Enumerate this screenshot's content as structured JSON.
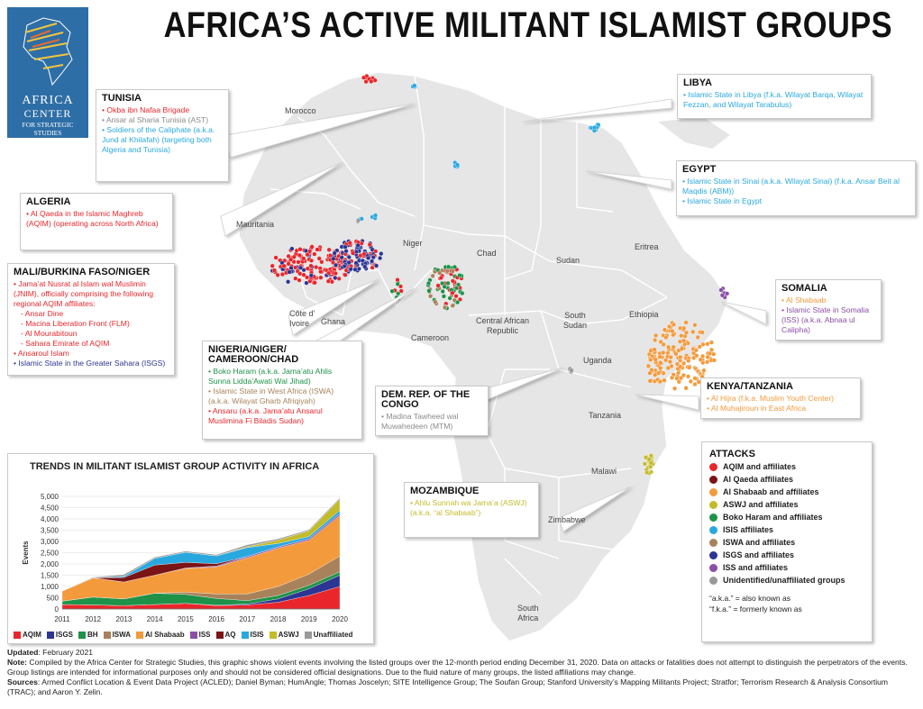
{
  "title": "AFRICA’S ACTIVE MILITANT ISLAMIST GROUPS",
  "logo": {
    "line1": "AFRICA",
    "line2": "CENTER",
    "line3a": "FOR STRATEGIC",
    "line3b": "STUDIES"
  },
  "country_labels": {
    "morocco": "Morocco",
    "mauritania": "Mauritania",
    "niger": "Niger",
    "chad": "Chad",
    "sudan": "Sudan",
    "eritrea": "Eritrea",
    "cote": "Côte d’",
    "ivoire": "Ivoire",
    "ghana": "Ghana",
    "cameroon": "Cameroon",
    "car1": "Central African",
    "car2": "Republic",
    "ss1": "South",
    "ss2": "Sudan",
    "ethiopia": "Ethiopia",
    "uganda": "Uganda",
    "tanzania": "Tanzania",
    "malawi": "Malawi",
    "zimbabwe": "Zimbabwe",
    "sa1": "South",
    "sa2": "Africa"
  },
  "boxes": {
    "tunisia": {
      "title": "TUNISIA",
      "items": [
        {
          "text": "• Okba ibn Nafaa Brigade",
          "color": "#e8262b"
        },
        {
          "text": "• Ansar al Sharia Tunisia (AST)",
          "color": "#8a8a8a"
        },
        {
          "text": "• Soldiers of the Caliphate (a.k.a. Jund al Khilafah) (targeting both Algeria and Tunisia)",
          "color": "#29a8df"
        }
      ]
    },
    "algeria": {
      "title": "ALGERIA",
      "items": [
        {
          "text": "• Al Qaeda in the Islamic Maghreb (AQIM) (operating across North Africa)",
          "color": "#e8262b"
        }
      ]
    },
    "mali": {
      "title": "MALI/BURKINA FASO/NIGER",
      "items": [
        {
          "text": "• Jama’at Nusrat al Islam wal Muslimin (JNIM), officially comprising the following regional AQIM affiliates:",
          "color": "#e8262b"
        },
        {
          "text": "- Ansar Dine",
          "color": "#e8262b",
          "indent": true
        },
        {
          "text": "- Macina Liberation Front (FLM)",
          "color": "#e8262b",
          "indent": true
        },
        {
          "text": "- Al Mourabitoun",
          "color": "#e8262b",
          "indent": true
        },
        {
          "text": "- Sahara Emirate of AQIM",
          "color": "#e8262b",
          "indent": true
        },
        {
          "text": "• Ansaroul Islam",
          "color": "#e8262b"
        },
        {
          "text": "• Islamic State in the Greater Sahara (ISGS)",
          "color": "#2c3592"
        }
      ]
    },
    "nigeria": {
      "title": "NIGERIA/NIGER/ CAMEROON/CHAD",
      "items": [
        {
          "text": "• Boko Haram (a.k.a. Jama’atu Ahlis Sunna Lidda’Awati Wal Jihad)",
          "color": "#1e9249"
        },
        {
          "text": "• Islamic State in West Africa (ISWA) (a.k.a. Wilayat Gharb Afriqiyah)",
          "color": "#a8825b"
        },
        {
          "text": "• Ansaru (a.k.a. Jama’atu Ansarul Muslimina Fi Biladis Sudan)",
          "color": "#e8262b"
        }
      ]
    },
    "drc": {
      "title": "DEM. REP. OF THE CONGO",
      "items": [
        {
          "text": "• Madina Tawheed wal Muwahedeen (MTM)",
          "color": "#8a8a8a"
        }
      ]
    },
    "mozambique": {
      "title": "MOZAMBIQUE",
      "items": [
        {
          "text": "• Ahlu Sunnah wa Jama’a (ASWJ) (a.k.a. “al Shabaab”)",
          "color": "#c4bb2a"
        }
      ]
    },
    "libya": {
      "title": "LIBYA",
      "items": [
        {
          "text": "• Islamic State in Libya (f.k.a. Wilayat Barqa, Wilayat Fezzan, and Wilayat Tarabulus)",
          "color": "#29a8df"
        }
      ]
    },
    "egypt": {
      "title": "EGYPT",
      "items": [
        {
          "text": "• Islamic State in Sinai (a.k.a. Wilayat Sinai) (f.k.a. Ansar Beit al Maqdis (ABM))",
          "color": "#29a8df"
        },
        {
          "text": "• Islamic State in Egypt",
          "color": "#29a8df"
        }
      ]
    },
    "somalia": {
      "title": "SOMALIA",
      "items": [
        {
          "text": "• Al Shabaab",
          "color": "#f39a3c"
        },
        {
          "text": "• Islamic State in Somalia (ISS) (a.k.a. Abnaa ul Calipha)",
          "color": "#8b4fa6"
        }
      ]
    },
    "kenya": {
      "title": "KENYA/TANZANIA",
      "items": [
        {
          "text": "• Al Hijra (f.k.a. Muslim Youth Center)",
          "color": "#f39a3c"
        },
        {
          "text": "• Al Muhajiroun in East Africa",
          "color": "#f39a3c"
        }
      ]
    }
  },
  "legend": {
    "title": "ATTACKS",
    "items": [
      {
        "label": "AQIM and affiliates",
        "color": "#e8262b"
      },
      {
        "label": "Al Qaeda affiliates",
        "color": "#7a1416"
      },
      {
        "label": "Al Shabaab and affiliates",
        "color": "#f39a3c"
      },
      {
        "label": "ASWJ and affiliates",
        "color": "#c4bb2a"
      },
      {
        "label": "Boko Haram and affiliates",
        "color": "#1e9249"
      },
      {
        "label": "ISIS affiliates",
        "color": "#29a8df"
      },
      {
        "label": "ISWA and affiliates",
        "color": "#a8825b"
      },
      {
        "label": "ISGS and affiliates",
        "color": "#2c3592"
      },
      {
        "label": "ISS and affiliates",
        "color": "#8b4fa6"
      },
      {
        "label": "Unidentified/unaffiliated groups",
        "color": "#999999"
      }
    ],
    "note1": "“a.k.a.” = also known as",
    "note2": "“f.k.a.” = formerly known as"
  },
  "trends": {
    "title": "TRENDS IN MILITANT ISLAMIST GROUP ACTIVITY IN AFRICA",
    "ylabel": "Events"
  },
  "chart_data": {
    "type": "area",
    "title": "TRENDS IN MILITANT ISLAMIST GROUP ACTIVITY IN AFRICA",
    "xlabel": "",
    "ylabel": "Events",
    "x": [
      2011,
      2012,
      2013,
      2014,
      2015,
      2016,
      2017,
      2018,
      2019,
      2020
    ],
    "ylim": [
      0,
      5000
    ],
    "yticks": [
      0,
      500,
      1000,
      1500,
      2000,
      2500,
      3000,
      3500,
      4000,
      4500,
      5000
    ],
    "ytick_labels": [
      "0",
      "500",
      "1,000",
      "1,500",
      "2,000",
      "2,500",
      "3,000",
      "3,500",
      "4,000",
      "4,500",
      "5,000"
    ],
    "stacked": true,
    "series": [
      {
        "name": "AQIM",
        "color": "#e8262b",
        "values": [
          200,
          180,
          150,
          200,
          250,
          150,
          180,
          300,
          600,
          1000
        ]
      },
      {
        "name": "ISGS",
        "color": "#2c3592",
        "values": [
          0,
          0,
          0,
          0,
          0,
          20,
          40,
          150,
          300,
          500
        ]
      },
      {
        "name": "BH",
        "color": "#1e9249",
        "values": [
          150,
          350,
          300,
          500,
          400,
          300,
          150,
          150,
          150,
          150
        ]
      },
      {
        "name": "ISWA",
        "color": "#a8825b",
        "values": [
          0,
          0,
          0,
          0,
          100,
          200,
          300,
          400,
          500,
          700
        ]
      },
      {
        "name": "Al Shabaab",
        "color": "#f39a3c",
        "values": [
          450,
          850,
          750,
          800,
          1050,
          1200,
          1600,
          1700,
          1500,
          1800
        ]
      },
      {
        "name": "ISS",
        "color": "#8b4fa6",
        "values": [
          0,
          0,
          0,
          0,
          20,
          40,
          60,
          60,
          70,
          80
        ]
      },
      {
        "name": "AQ",
        "color": "#7a1416",
        "values": [
          0,
          0,
          200,
          450,
          250,
          100,
          0,
          0,
          0,
          0
        ]
      },
      {
        "name": "ISIS",
        "color": "#29a8df",
        "values": [
          0,
          0,
          50,
          300,
          450,
          350,
          400,
          150,
          100,
          150
        ]
      },
      {
        "name": "ASWJ",
        "color": "#c4bb2a",
        "values": [
          0,
          0,
          0,
          0,
          0,
          0,
          40,
          150,
          250,
          500
        ]
      },
      {
        "name": "Unaffiliated",
        "color": "#999999",
        "values": [
          0,
          30,
          80,
          50,
          50,
          50,
          80,
          60,
          50,
          50
        ]
      }
    ]
  },
  "footer": {
    "updated_label": "Updated",
    "updated_value": ": February 2021",
    "note_label": "Note:",
    "note_text": " Compiled by the Africa Center for Strategic Studies, this graphic shows violent events involving the listed groups over the 12-month period ending December 31, 2020. Data on attacks or fatalities does not attempt to distinguish the perpetrators of the events. Group listings are intended for informational purposes only and should not be considered official designations. Due to the fluid nature of many groups, the listed affiliations may change.",
    "sources_label": "Sources",
    "sources_text": ": Armed Conflict Location & Event Data Project (ACLED); Daniel Byman; HumAngle; Thomas Joscelyn; SITE Intelligence Group; The Soufan Group; Stanford University’s Mapping Militants Project; Stratfor; Terrorism Research & Analysis Consortium (TRAC); and Aaron Y. Zelin."
  }
}
